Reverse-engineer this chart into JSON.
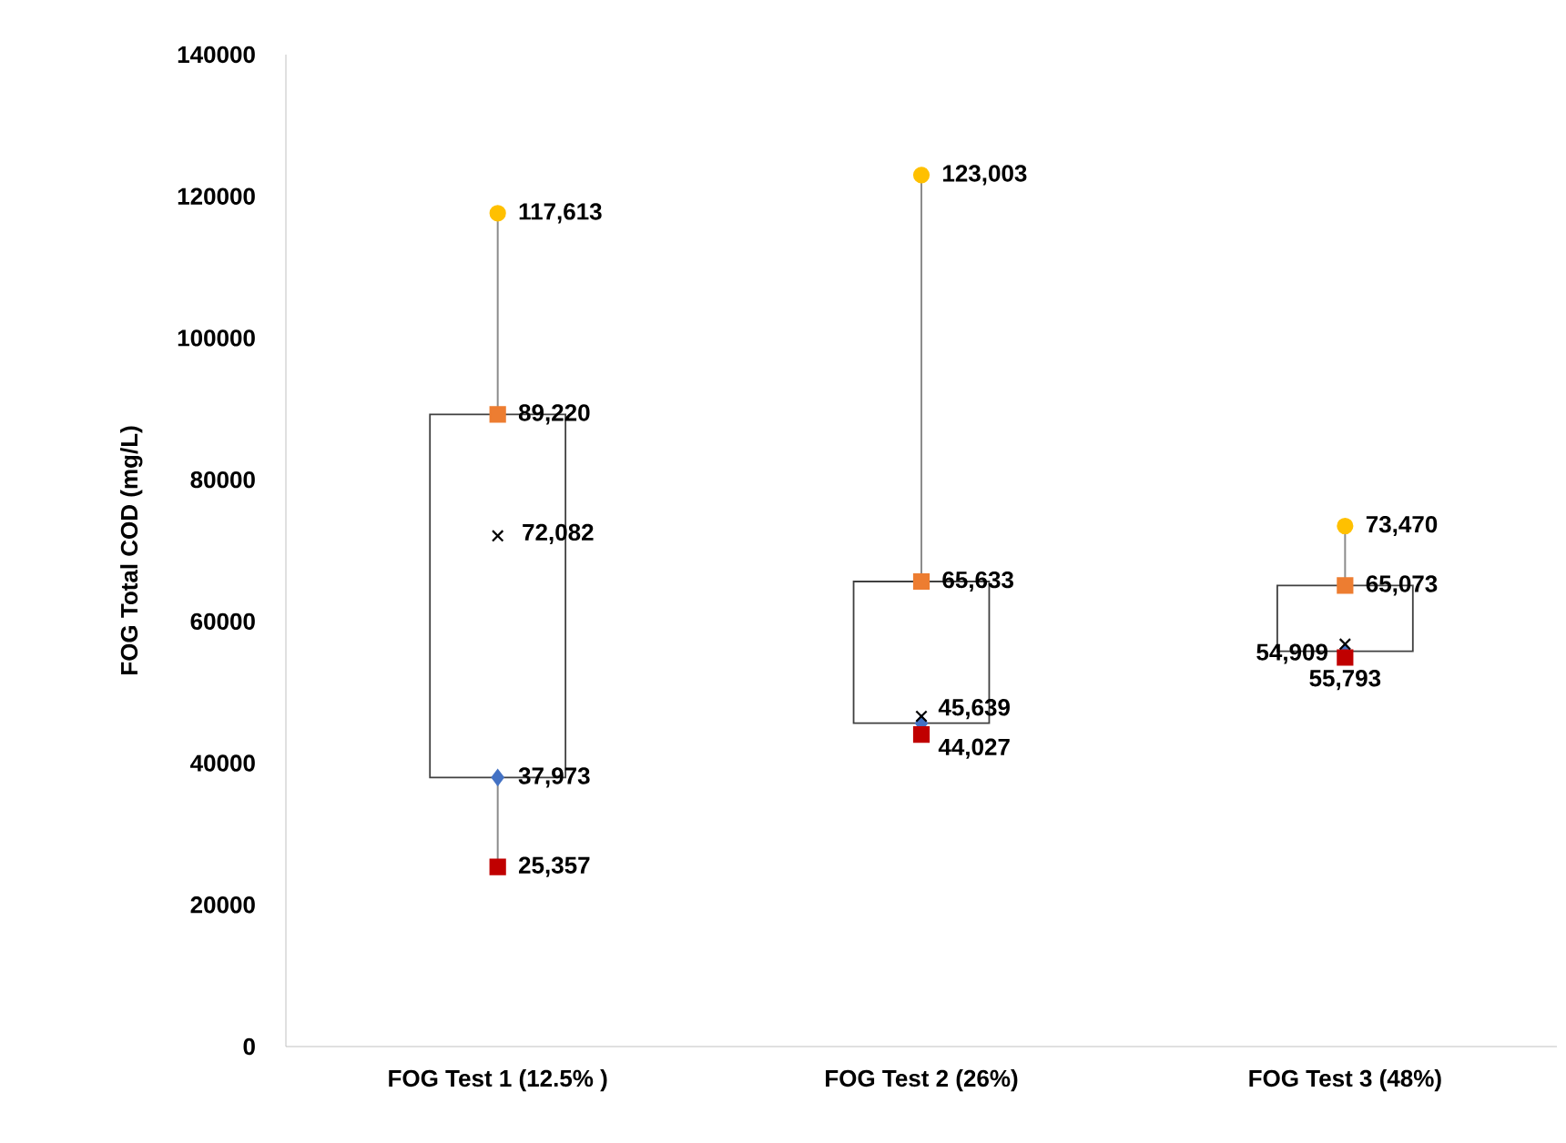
{
  "chart_data": {
    "type": "box",
    "ylabel": "FOG Total COD (mg/L)",
    "categories": [
      "FOG Test 1 (12.5% )",
      "FOG Test 2 (26%)",
      "FOG Test 3 (48%)"
    ],
    "boxes": [
      {
        "low": 25357,
        "q1": 37973,
        "q3": 89220,
        "high": 117613
      },
      {
        "low": 44027,
        "q1": 45639,
        "q3": 65633,
        "high": 123003
      },
      {
        "low": 54909,
        "q1": 55793,
        "q3": 65073,
        "high": 73470
      }
    ],
    "series": [
      {
        "type": "scatter",
        "color": "#ffc000",
        "marker": "circle",
        "values": [
          117613,
          123003,
          73470
        ],
        "value_labels": [
          "117,613",
          "123,003",
          "73,470"
        ]
      },
      {
        "type": "scatter",
        "color": "#ed7d31",
        "marker": "square",
        "values": [
          89220,
          65633,
          65073
        ],
        "value_labels": [
          "89,220",
          "65,633",
          "65,073"
        ]
      },
      {
        "type": "scatter",
        "color": "#4472c4",
        "marker": "diamond",
        "values": [
          37973,
          45639,
          55793
        ],
        "value_labels": [
          "37,973",
          "45,639",
          "55,793"
        ]
      },
      {
        "type": "scatter",
        "color": "#c00000",
        "marker": "square",
        "values": [
          25357,
          44027,
          54909
        ],
        "value_labels": [
          "25,357",
          "44,027",
          "54,909"
        ]
      },
      {
        "type": "scatter",
        "color": "#000000",
        "marker": "cross",
        "values": [
          72082,
          46600,
          56800
        ],
        "value_labels": [
          "72,082",
          null,
          null
        ]
      }
    ],
    "ylim": [
      0,
      140000
    ],
    "yticks": [
      0,
      20000,
      40000,
      60000,
      80000,
      100000,
      120000,
      140000
    ]
  }
}
